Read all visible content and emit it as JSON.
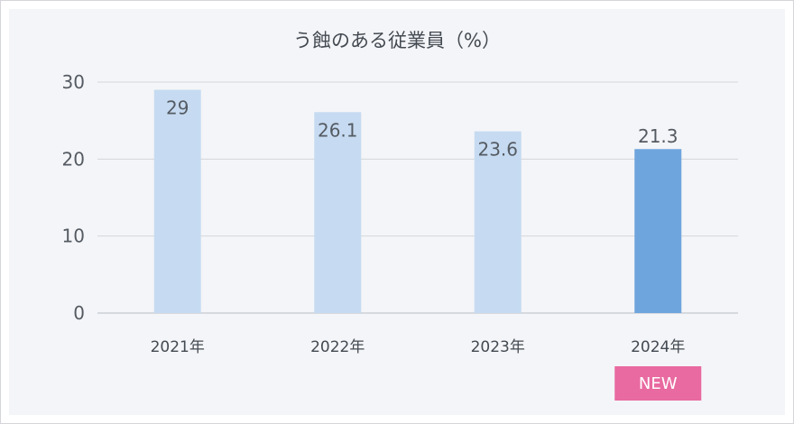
{
  "chart_data": {
    "type": "bar",
    "title": "う蝕のある従業員（%）",
    "xlabel": "",
    "ylabel": "",
    "categories": [
      "2021年",
      "2022年",
      "2023年",
      "2024年"
    ],
    "values": [
      29,
      26.1,
      23.6,
      21.3
    ],
    "value_labels": [
      "29",
      "26.1",
      "23.6",
      "21.3"
    ],
    "ylim": [
      0,
      30
    ],
    "yticks": [
      0,
      10,
      20,
      30
    ],
    "ytick_labels": [
      "0",
      "10",
      "20",
      "30"
    ],
    "grid": true,
    "bar_colors": [
      "#c6dbf1",
      "#c6dbf1",
      "#c6dbf1",
      "#6fa5dd"
    ],
    "highlight_index": 3,
    "badge": {
      "label": "NEW",
      "category_index": 3,
      "color": "#e86aa0"
    }
  }
}
